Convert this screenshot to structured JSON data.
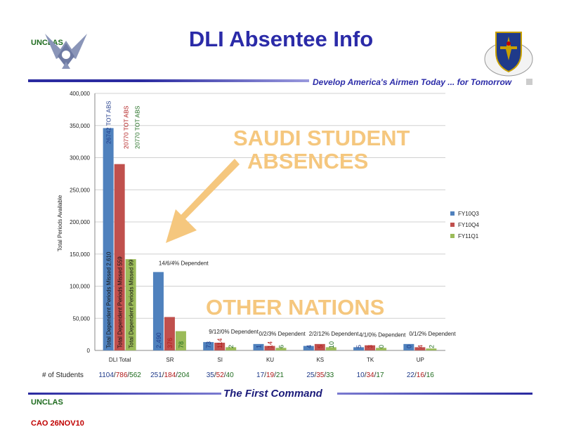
{
  "header": {
    "title": "DLI Absentee Info",
    "unclas_top": "UNCLAS",
    "tagline": "Develop America's Airmen Today ... for Tomorrow"
  },
  "footer": {
    "tag": "The First Command",
    "unclas": "UNCLAS",
    "date_code": "CAO 26NOV10"
  },
  "colors": {
    "title_blue": "#2b2ba8",
    "unclas_green": "#1e6b1e",
    "cao_red": "#c00000",
    "series_fy10q3": "#4f81bd",
    "series_fy10q4": "#c0504d",
    "series_fy11q1": "#9bbb59",
    "overlay_orange": "#f5c77e"
  },
  "annotations": {
    "overlay_saudi_1": "SAUDI STUDENT",
    "overlay_saudi_2": "ABSENCES",
    "overlay_other": "OTHER NATIONS"
  },
  "chart_data": {
    "type": "bar",
    "ylabel": "Total Periods Available",
    "ylim": [
      0,
      400000
    ],
    "yticks": [
      "0",
      "50,000",
      "100,000",
      "150,000",
      "200,000",
      "250,000",
      "300,000",
      "350,000",
      "400,000"
    ],
    "categories": [
      "DLI Total",
      "SR",
      "SI",
      "KU",
      "KS",
      "TK",
      "UP"
    ],
    "series": [
      {
        "name": "FY10Q3",
        "values": [
          346000,
          122000,
          13000,
          10000,
          7000,
          5000,
          10000
        ]
      },
      {
        "name": "FY10Q4",
        "values": [
          290000,
          52000,
          12000,
          7000,
          10000,
          8000,
          5000
        ]
      },
      {
        "name": "FY11Q1",
        "values": [
          142000,
          30000,
          5000,
          4000,
          5000,
          4000,
          3000
        ]
      }
    ],
    "bar_labels": [
      [
        "Total Dependent Periods Missed 2,610",
        "Total Dependent Periods Missed 559",
        "Total Dependent Periods Missed 99"
      ],
      [
        "2,490",
        "376",
        "78"
      ],
      [
        "73",
        "114",
        "2"
      ],
      [
        "1",
        "14",
        "6"
      ],
      [
        "4",
        "5",
        "10"
      ],
      [
        "5",
        "3",
        "0"
      ],
      [
        "0",
        "4",
        "2"
      ]
    ],
    "top_labels": [
      "26742 TOT ABS",
      "20770 TOT ABS",
      "20770 TOT ABS"
    ],
    "dependent_labels": [
      "",
      "14/6/4% Dependent",
      "9/12/0% Dependent",
      "0/2/3% Dependent",
      "2/2/12% Dependent",
      "4/1/0% Dependent",
      "0/1/2% Dependent"
    ],
    "students_label": "# of Students",
    "students": [
      [
        "1104",
        "786",
        "562"
      ],
      [
        "251",
        "184",
        "204"
      ],
      [
        "35",
        "52",
        "40"
      ],
      [
        "17",
        "19",
        "21"
      ],
      [
        "25",
        "35",
        "33"
      ],
      [
        "10",
        "34",
        "17"
      ],
      [
        "22",
        "16",
        "16"
      ]
    ],
    "legend_position": "right",
    "grid": true
  }
}
